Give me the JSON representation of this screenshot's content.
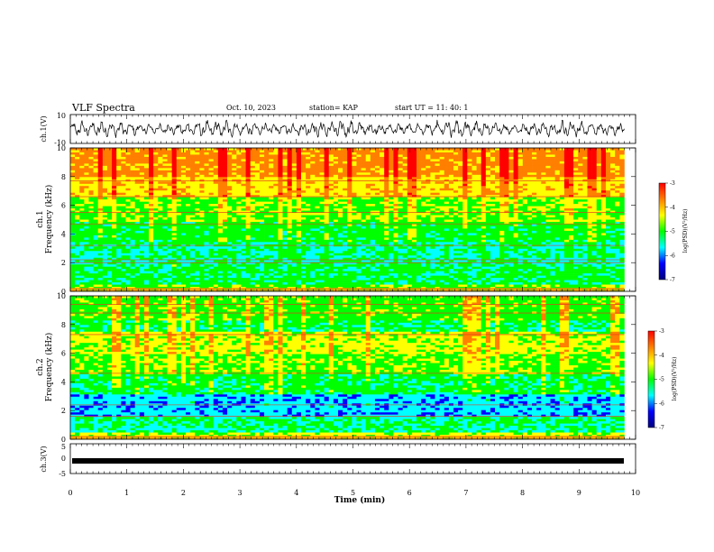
{
  "header": {
    "title": "VLF Spectra",
    "date": "Oct. 10, 2023",
    "station": "station= KAP",
    "start": "start  UT  =   11: 40: 1"
  },
  "chart_data": {
    "type": "heatmap",
    "xlabel": "Time  (min)",
    "xlim": [
      0,
      10
    ],
    "xticks": [
      "0",
      "1",
      "2",
      "3",
      "4",
      "5",
      "6",
      "7",
      "8",
      "9",
      "10"
    ],
    "panels": [
      {
        "id": "ch1-waveform",
        "type": "line",
        "ylabel": "ch.1(V)",
        "ylim": [
          -10,
          10
        ],
        "yticks": [
          "10",
          "-10"
        ],
        "xlim": [
          0,
          9.8
        ],
        "series": [
          {
            "approx_amplitude": 6
          }
        ]
      },
      {
        "id": "ch1-spectrogram",
        "type": "heatmap",
        "ylabel_line1": "ch.1",
        "ylabel_line2": "Frequency  (kHz)",
        "ylim": [
          0,
          10
        ],
        "yticks": [
          "0",
          "2",
          "4",
          "6",
          "8",
          "10"
        ],
        "xlim": [
          0,
          9.8
        ],
        "colorbar": {
          "label": "log(PSD)(V²/Hz)",
          "range": [
            -7,
            -3
          ],
          "ticks": [
            "-3",
            "-4",
            "-5",
            "-6",
            "-7"
          ],
          "colors": [
            "#00007f",
            "#0000ff",
            "#00ffff",
            "#00ff00",
            "#ffff00",
            "#ff7f00",
            "#ff0000"
          ]
        }
      },
      {
        "id": "ch2-spectrogram",
        "type": "heatmap",
        "ylabel_line1": "ch.2",
        "ylabel_line2": "Frequency  (kHz)",
        "ylim": [
          0,
          10
        ],
        "yticks": [
          "0",
          "2",
          "4",
          "6",
          "8",
          "10"
        ],
        "xlim": [
          0,
          9.8
        ],
        "colorbar": {
          "label": "log(PSD)(V²/Hz)",
          "range": [
            -7,
            -3
          ],
          "ticks": [
            "-3",
            "-4",
            "-5",
            "-6",
            "-7"
          ],
          "colors": [
            "#00007f",
            "#0000ff",
            "#00ffff",
            "#00ff00",
            "#ffff00",
            "#ff7f00",
            "#ff0000"
          ]
        }
      },
      {
        "id": "ch3-waveform",
        "type": "line",
        "ylabel": "ch.3(V)",
        "ylim": [
          -5,
          5
        ],
        "yticks": [
          "5",
          "0",
          "-5"
        ],
        "xlim": [
          0,
          9.8
        ],
        "series": [
          {
            "approx_amplitude": 0.4
          }
        ]
      }
    ]
  }
}
